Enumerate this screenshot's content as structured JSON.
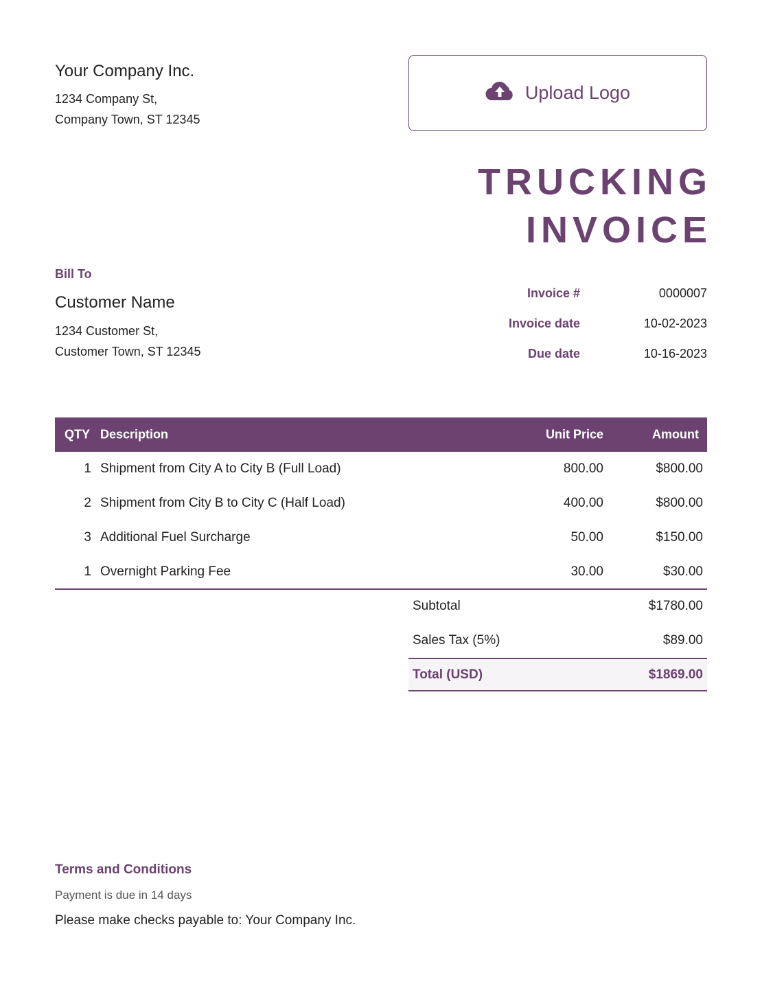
{
  "company": {
    "name": "Your Company Inc.",
    "address_line1": "1234 Company St,",
    "address_line2": "Company Town, ST 12345"
  },
  "upload": {
    "label": "Upload Logo",
    "icon": "cloud-upload-icon"
  },
  "title": {
    "line1": "TRUCKING",
    "line2": "INVOICE"
  },
  "bill_to": {
    "heading": "Bill To",
    "name": "Customer Name",
    "address_line1": "1234 Customer St,",
    "address_line2": "Customer Town, ST 12345"
  },
  "meta": [
    {
      "label": "Invoice #",
      "value": "0000007"
    },
    {
      "label": "Invoice date",
      "value": "10-02-2023"
    },
    {
      "label": "Due date",
      "value": "10-16-2023"
    }
  ],
  "table": {
    "headers": {
      "qty": "QTY",
      "description": "Description",
      "unit_price": "Unit Price",
      "amount": "Amount"
    },
    "rows": [
      {
        "qty": "1",
        "description": "Shipment from City A to City B (Full Load)",
        "unit_price": "800.00",
        "amount": "$800.00"
      },
      {
        "qty": "2",
        "description": "Shipment from City B to City C (Half Load)",
        "unit_price": "400.00",
        "amount": "$800.00"
      },
      {
        "qty": "3",
        "description": "Additional Fuel Surcharge",
        "unit_price": "50.00",
        "amount": "$150.00"
      },
      {
        "qty": "1",
        "description": "Overnight Parking Fee",
        "unit_price": "30.00",
        "amount": "$30.00"
      }
    ]
  },
  "summary": {
    "subtotal_label": "Subtotal",
    "subtotal": "$1780.00",
    "tax_label": "Sales Tax (5%)",
    "tax": "$89.00",
    "total_label": "Total (USD)",
    "total": "$1869.00"
  },
  "terms": {
    "heading": "Terms and Conditions",
    "line1": "Payment is due in 14 days",
    "line2": "Please make checks payable to: Your Company Inc."
  },
  "colors": {
    "accent": "#6b4270",
    "total_bg": "#f7f4f8"
  }
}
